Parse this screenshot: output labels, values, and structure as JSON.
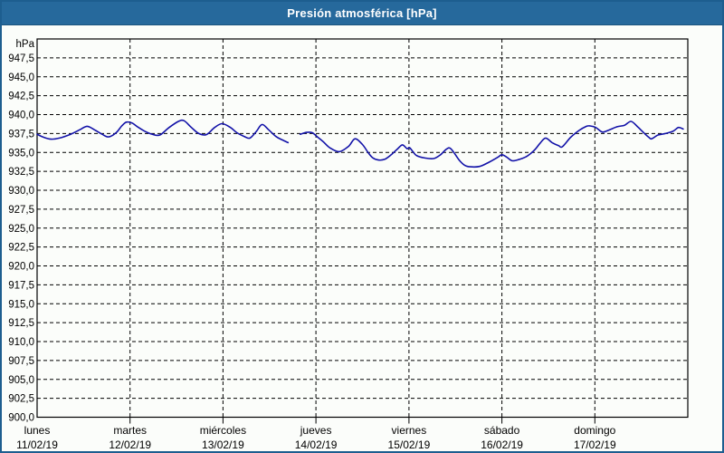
{
  "window": {
    "title": "Presión atmosférica [hPa]"
  },
  "colors": {
    "titlebar": "#26699c",
    "frame": "#1d5e8f",
    "background": "#fbfdfa",
    "grid": "#000000",
    "axis": "#000000",
    "text": "#000000",
    "line": "#1212a8"
  },
  "chart_data": {
    "type": "line",
    "title": "Presión atmosférica [hPa]",
    "ylabel": "hPa",
    "grid": true,
    "legend": "none",
    "y_axis": {
      "unit_label": "hPa",
      "min": 900,
      "max": 950,
      "tick_step": 2.5,
      "tick_labels": [
        "947,5",
        "945,0",
        "942,5",
        "940,0",
        "937,5",
        "935,0",
        "932,5",
        "930,0",
        "927,5",
        "925,0",
        "922,5",
        "920,0",
        "917,5",
        "915,0",
        "912,5",
        "910,0",
        "907,5",
        "905,0",
        "902,5",
        "900,0"
      ]
    },
    "x_axis": {
      "span_days": 7,
      "days": [
        {
          "weekday": "lunes",
          "date": "11/02/19"
        },
        {
          "weekday": "martes",
          "date": "12/02/19"
        },
        {
          "weekday": "miércoles",
          "date": "13/02/19"
        },
        {
          "weekday": "jueves",
          "date": "14/02/19"
        },
        {
          "weekday": "viernes",
          "date": "15/02/19"
        },
        {
          "weekday": "sábado",
          "date": "16/02/19"
        },
        {
          "weekday": "domingo",
          "date": "17/02/19"
        }
      ]
    },
    "series": [
      {
        "name": "Presión atmosférica",
        "color": "#1212a8",
        "units": "hPa",
        "x_units": "days since Monday 11/02/19 00:00",
        "points": [
          [
            0.0,
            937.4
          ],
          [
            0.07,
            937.0
          ],
          [
            0.15,
            936.75
          ],
          [
            0.24,
            936.9
          ],
          [
            0.36,
            937.4
          ],
          [
            0.46,
            938.0
          ],
          [
            0.54,
            938.45
          ],
          [
            0.63,
            937.9
          ],
          [
            0.7,
            937.4
          ],
          [
            0.77,
            937.05
          ],
          [
            0.85,
            937.6
          ],
          [
            0.91,
            938.5
          ],
          [
            0.96,
            939.0
          ],
          [
            1.02,
            938.9
          ],
          [
            1.08,
            938.4
          ],
          [
            1.16,
            937.8
          ],
          [
            1.24,
            937.4
          ],
          [
            1.32,
            937.3
          ],
          [
            1.42,
            938.3
          ],
          [
            1.52,
            939.1
          ],
          [
            1.58,
            939.2
          ],
          [
            1.66,
            938.3
          ],
          [
            1.74,
            937.5
          ],
          [
            1.82,
            937.35
          ],
          [
            1.91,
            938.3
          ],
          [
            1.99,
            938.8
          ],
          [
            2.08,
            938.3
          ],
          [
            2.15,
            937.6
          ],
          [
            2.23,
            937.1
          ],
          [
            2.29,
            936.9
          ],
          [
            2.36,
            937.8
          ],
          [
            2.42,
            938.7
          ],
          [
            2.49,
            938.0
          ],
          [
            2.57,
            937.1
          ],
          [
            2.64,
            936.65
          ],
          [
            2.7,
            936.3
          ],
          null,
          [
            2.83,
            937.4
          ],
          [
            2.9,
            937.65
          ],
          [
            2.96,
            937.6
          ],
          [
            3.02,
            937.0
          ],
          [
            3.08,
            936.4
          ],
          [
            3.15,
            935.6
          ],
          [
            3.25,
            935.1
          ],
          [
            3.35,
            935.8
          ],
          [
            3.42,
            936.8
          ],
          [
            3.5,
            936.05
          ],
          [
            3.56,
            935.0
          ],
          [
            3.61,
            934.3
          ],
          [
            3.67,
            934.0
          ],
          [
            3.74,
            934.1
          ],
          [
            3.81,
            934.7
          ],
          [
            3.88,
            935.5
          ],
          [
            3.93,
            936.0
          ],
          [
            3.98,
            935.5
          ],
          [
            4.01,
            935.6
          ],
          [
            4.08,
            934.6
          ],
          [
            4.18,
            934.25
          ],
          [
            4.27,
            934.2
          ],
          [
            4.34,
            934.7
          ],
          [
            4.4,
            935.4
          ],
          [
            4.45,
            935.5
          ],
          [
            4.54,
            934.0
          ],
          [
            4.6,
            933.3
          ],
          [
            4.66,
            933.1
          ],
          [
            4.76,
            933.15
          ],
          [
            4.86,
            933.7
          ],
          [
            4.96,
            934.4
          ],
          [
            5.0,
            934.7
          ],
          [
            5.05,
            934.4
          ],
          [
            5.11,
            933.9
          ],
          [
            5.19,
            934.1
          ],
          [
            5.27,
            934.5
          ],
          [
            5.35,
            935.3
          ],
          [
            5.41,
            936.2
          ],
          [
            5.47,
            936.9
          ],
          [
            5.54,
            936.3
          ],
          [
            5.61,
            935.9
          ],
          [
            5.65,
            935.75
          ],
          [
            5.74,
            937.0
          ],
          [
            5.83,
            937.9
          ],
          [
            5.91,
            938.45
          ],
          [
            5.95,
            938.5
          ],
          [
            6.01,
            938.3
          ],
          [
            6.08,
            937.7
          ],
          [
            6.15,
            937.95
          ],
          [
            6.24,
            938.4
          ],
          [
            6.32,
            938.6
          ],
          [
            6.39,
            939.1
          ],
          [
            6.46,
            938.4
          ],
          [
            6.51,
            937.8
          ],
          [
            6.58,
            937.0
          ],
          [
            6.61,
            936.8
          ],
          [
            6.68,
            937.3
          ],
          [
            6.76,
            937.5
          ],
          [
            6.84,
            937.8
          ],
          [
            6.9,
            938.3
          ],
          [
            6.95,
            938.1
          ]
        ]
      }
    ]
  }
}
